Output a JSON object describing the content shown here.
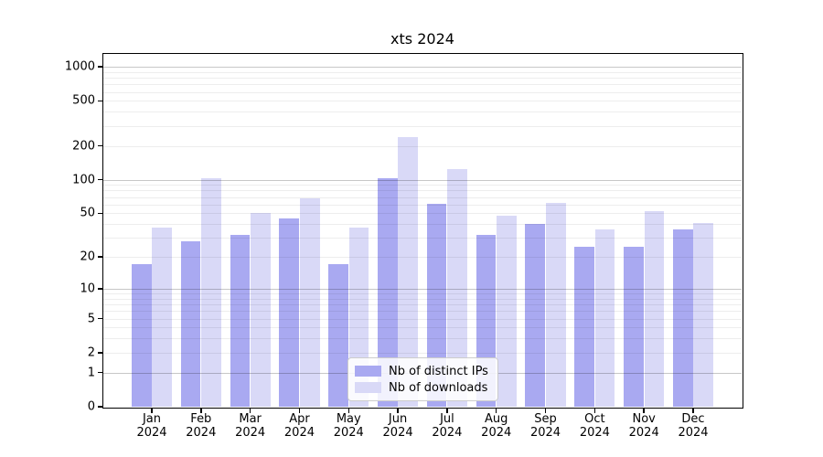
{
  "chart_data": {
    "type": "bar",
    "title": "xts 2024",
    "x_categories": [
      {
        "month": "Jan",
        "year": "2024"
      },
      {
        "month": "Feb",
        "year": "2024"
      },
      {
        "month": "Mar",
        "year": "2024"
      },
      {
        "month": "Apr",
        "year": "2024"
      },
      {
        "month": "May",
        "year": "2024"
      },
      {
        "month": "Jun",
        "year": "2024"
      },
      {
        "month": "Jul",
        "year": "2024"
      },
      {
        "month": "Aug",
        "year": "2024"
      },
      {
        "month": "Sep",
        "year": "2024"
      },
      {
        "month": "Oct",
        "year": "2024"
      },
      {
        "month": "Nov",
        "year": "2024"
      },
      {
        "month": "Dec",
        "year": "2024"
      }
    ],
    "series": [
      {
        "name": "Nb of distinct IPs",
        "color": "#a9a9f1",
        "values": [
          17,
          28,
          32,
          45,
          17,
          103,
          61,
          32,
          40,
          25,
          25,
          36
        ]
      },
      {
        "name": "Nb of downloads",
        "color": "#d9d9f7",
        "values": [
          37,
          103,
          50,
          68,
          37,
          240,
          125,
          48,
          62,
          36,
          52,
          41
        ]
      }
    ],
    "y_axis": {
      "scale": "log1p",
      "ticks": [
        {
          "value": 0,
          "label": "0"
        },
        {
          "value": 1,
          "label": "1"
        },
        {
          "value": 2,
          "label": "2"
        },
        {
          "value": 5,
          "label": "5"
        },
        {
          "value": 10,
          "label": "10"
        },
        {
          "value": 20,
          "label": "20"
        },
        {
          "value": 50,
          "label": "50"
        },
        {
          "value": 100,
          "label": "100"
        },
        {
          "value": 200,
          "label": "200"
        },
        {
          "value": 500,
          "label": "500"
        },
        {
          "value": 1000,
          "label": "1000"
        }
      ],
      "ylim": [
        0,
        1300
      ]
    },
    "grid": "horizontal",
    "legend_position": "bottom-center"
  }
}
